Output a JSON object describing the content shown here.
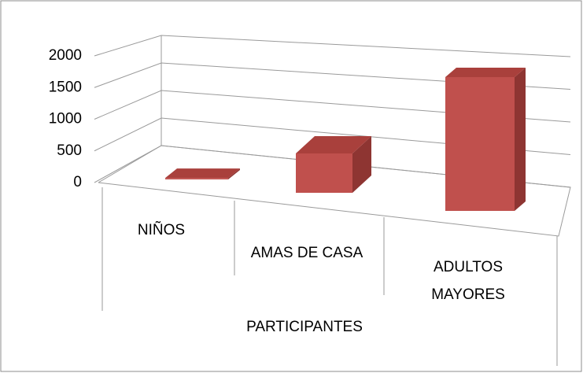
{
  "chart_data": {
    "type": "bar3d",
    "categories": [
      "NIÑOS",
      "AMAS DE CASA",
      "ADULTOS MAYORES"
    ],
    "values": [
      20,
      530,
      1800
    ],
    "color": "#c0504d",
    "x_label": "PARTICIPANTES",
    "ylim": [
      0,
      2000
    ],
    "yticks": [
      0,
      500,
      1000,
      1500,
      2000
    ],
    "grid": true
  }
}
